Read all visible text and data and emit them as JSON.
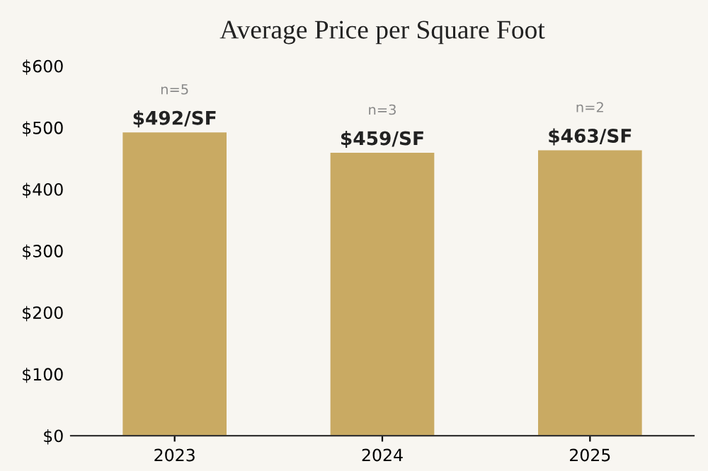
{
  "chart_data": {
    "type": "bar",
    "title": "Average Price per Square Foot",
    "categories": [
      "2023",
      "2024",
      "2025"
    ],
    "values": [
      492,
      459,
      463
    ],
    "value_labels": [
      "$492/SF",
      "$459/SF",
      "$463/SF"
    ],
    "color": "#c9aa63",
    "ylim": [
      0,
      600
    ],
    "yticks": [
      {
        "value": 0,
        "label": "$0"
      },
      {
        "value": 100,
        "label": "$100"
      },
      {
        "value": 200,
        "label": "$200"
      },
      {
        "value": 300,
        "label": "$300"
      },
      {
        "value": 400,
        "label": "$400"
      },
      {
        "value": 500,
        "label": "$500"
      },
      {
        "value": 600,
        "label": "$600"
      }
    ],
    "annotations": [
      "n=5",
      "n=3",
      "n=2"
    ],
    "grid": false
  }
}
